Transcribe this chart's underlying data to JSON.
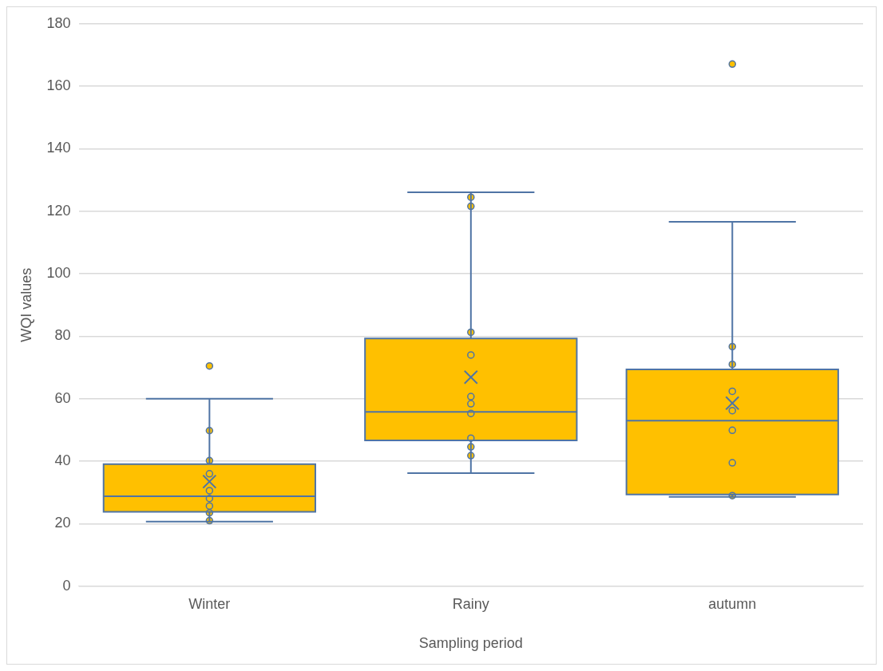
{
  "chart_data": {
    "type": "box",
    "categories": [
      "Winter",
      "Rainy",
      "autumn"
    ],
    "xlabel": "Sampling period",
    "ylabel": "WQI values",
    "ylim": [
      0,
      180
    ],
    "yticks": [
      0,
      20,
      40,
      60,
      80,
      100,
      120,
      140,
      160,
      180
    ],
    "grid": "y",
    "legend": false,
    "marker": "circle",
    "series": [
      {
        "color": "#ffc000",
        "boxes": [
          {
            "low": 20.7,
            "q1": 23.8,
            "median": 28.8,
            "q3": 39.1,
            "high": 60,
            "mean": 33.5,
            "outliers": [
              70.5
            ]
          },
          {
            "low": 36.2,
            "q1": 46.7,
            "median": 55.8,
            "q3": 79.3,
            "high": 126.1,
            "mean": 66.9
          },
          {
            "low": 28.6,
            "q1": 29.4,
            "median": 53,
            "q3": 69.4,
            "high": 116.6,
            "mean": 58.6,
            "outliers": [
              167.1
            ]
          }
        ]
      },
      {
        "type": "scatter",
        "color": "#ffc000",
        "x": [
          "Winter",
          "Winter",
          "Winter",
          "Winter",
          "Winter",
          "Winter",
          "Winter",
          "Winter",
          "Rainy",
          "Rainy",
          "Rainy",
          "Rainy",
          "Rainy",
          "Rainy",
          "Rainy",
          "Rainy",
          "Rainy",
          "Rainy",
          "autumn",
          "autumn",
          "autumn",
          "autumn",
          "autumn",
          "autumn",
          "autumn"
        ],
        "values": [
          49.8,
          40.2,
          36,
          30.6,
          28.1,
          25.7,
          23.5,
          21,
          124.5,
          121.6,
          81.3,
          74,
          60.7,
          58.4,
          55.3,
          47.4,
          44.6,
          41.8,
          76.7,
          71,
          62.4,
          56.2,
          49.9,
          39.5,
          29
        ]
      }
    ]
  }
}
